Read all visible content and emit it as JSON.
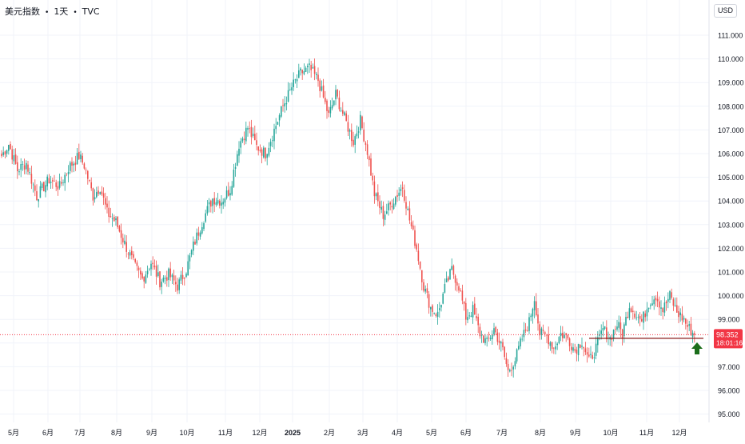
{
  "header": {
    "symbol": "美元指数",
    "interval": "1天",
    "source": "TVC"
  },
  "currency_label": "USD",
  "price_label": {
    "value": "98.352",
    "countdown": "18:01:16"
  },
  "colors": {
    "up": "#26a69a",
    "down": "#ef5350",
    "last_price": "#f23645",
    "grid": "#f0f3fa",
    "axis_text": "#131722",
    "arrow": "#1b6e1b",
    "support_line": "#8b1a1a"
  },
  "icons": {
    "marker": "arrow-up-icon"
  },
  "chart_data": {
    "type": "candlestick",
    "y_axis": {
      "side": "right",
      "range": [
        95.0,
        111.0
      ],
      "grid": true,
      "ticks": [
        "111.000",
        "110.000",
        "109.000",
        "108.000",
        "107.000",
        "106.000",
        "105.000",
        "104.000",
        "103.000",
        "102.000",
        "101.000",
        "100.000",
        "99.000",
        "98.000",
        "97.000",
        "96.000",
        "95.000"
      ]
    },
    "x_axis": {
      "grid": true,
      "ticks": [
        "5月",
        "6月",
        "7月",
        "8月",
        "9月",
        "10月",
        "11月",
        "12月",
        "2025",
        "2月",
        "3月",
        "4月",
        "5月",
        "6月",
        "7月",
        "8月",
        "9月",
        "10月",
        "11月",
        "12月"
      ]
    },
    "last_price": 98.352,
    "support_level": 98.2,
    "approx_close_path": [
      [
        0,
        105.9
      ],
      [
        4,
        106.4
      ],
      [
        9,
        105.3
      ],
      [
        14,
        105.6
      ],
      [
        20,
        104.2
      ],
      [
        27,
        104.9
      ],
      [
        33,
        104.6
      ],
      [
        38,
        105.4
      ],
      [
        44,
        105.9
      ],
      [
        47,
        105.5
      ],
      [
        52,
        104.2
      ],
      [
        56,
        104.6
      ],
      [
        60,
        103.5
      ],
      [
        65,
        103.1
      ],
      [
        70,
        102.2
      ],
      [
        76,
        101.2
      ],
      [
        80,
        100.7
      ],
      [
        85,
        101.4
      ],
      [
        90,
        100.6
      ],
      [
        95,
        100.9
      ],
      [
        100,
        100.4
      ],
      [
        105,
        101.1
      ],
      [
        109,
        102.1
      ],
      [
        115,
        103.3
      ],
      [
        120,
        104.1
      ],
      [
        125,
        104.0
      ],
      [
        130,
        104.5
      ],
      [
        135,
        106.4
      ],
      [
        140,
        107.1
      ],
      [
        145,
        106.3
      ],
      [
        150,
        106.0
      ],
      [
        155,
        107.0
      ],
      [
        160,
        108.0
      ],
      [
        165,
        108.8
      ],
      [
        170,
        109.4
      ],
      [
        175,
        109.6
      ],
      [
        180,
        109.1
      ],
      [
        186,
        107.6
      ],
      [
        190,
        108.5
      ],
      [
        196,
        107.3
      ],
      [
        200,
        106.5
      ],
      [
        204,
        107.4
      ],
      [
        208,
        106.1
      ],
      [
        212,
        104.3
      ],
      [
        217,
        103.4
      ],
      [
        220,
        103.7
      ],
      [
        225,
        104.3
      ],
      [
        228,
        104.6
      ],
      [
        232,
        103.2
      ],
      [
        236,
        102.0
      ],
      [
        240,
        100.4
      ],
      [
        244,
        99.5
      ],
      [
        248,
        99.2
      ],
      [
        252,
        100.3
      ],
      [
        256,
        101.1
      ],
      [
        260,
        100.4
      ],
      [
        264,
        99.1
      ],
      [
        268,
        99.4
      ],
      [
        272,
        98.4
      ],
      [
        276,
        98.0
      ],
      [
        280,
        98.6
      ],
      [
        285,
        97.7
      ],
      [
        288,
        96.8
      ],
      [
        292,
        97.3
      ],
      [
        296,
        98.2
      ],
      [
        300,
        98.9
      ],
      [
        303,
        99.9
      ],
      [
        306,
        98.4
      ],
      [
        310,
        98.3
      ],
      [
        314,
        97.8
      ],
      [
        318,
        98.4
      ],
      [
        322,
        98.2
      ],
      [
        326,
        97.7
      ],
      [
        330,
        98.1
      ],
      [
        334,
        97.2
      ],
      [
        338,
        97.8
      ],
      [
        342,
        98.6
      ],
      [
        346,
        98.2
      ],
      [
        350,
        98.8
      ],
      [
        353,
        98.4
      ],
      [
        357,
        99.6
      ],
      [
        361,
        99.2
      ],
      [
        364,
        98.9
      ],
      [
        368,
        99.7
      ],
      [
        372,
        100.0
      ],
      [
        376,
        99.4
      ],
      [
        380,
        100.0
      ],
      [
        384,
        99.3
      ],
      [
        388,
        99.0
      ],
      [
        390,
        98.7
      ],
      [
        394,
        98.35
      ]
    ]
  }
}
